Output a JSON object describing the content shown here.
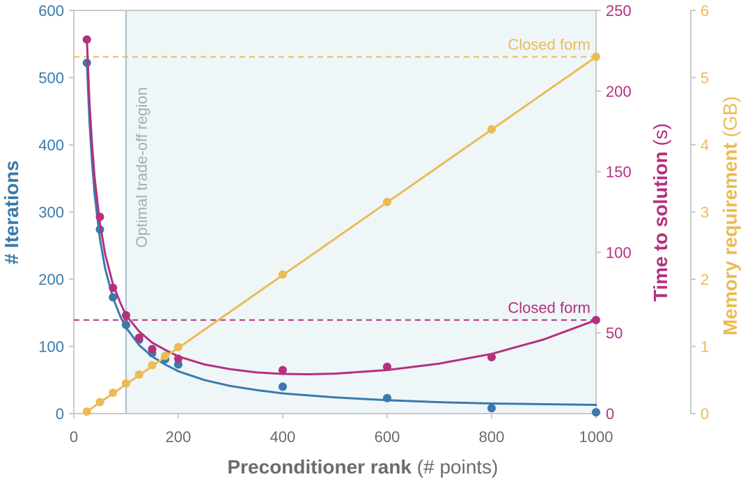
{
  "chart_data": {
    "type": "line",
    "xlabel_bold": "Preconditioner rank",
    "xlabel_rest": "(# points)",
    "xlim": [
      0,
      1000
    ],
    "xticks": [
      0,
      200,
      400,
      600,
      800,
      1000
    ],
    "shaded_region": {
      "x_start": 100,
      "x_end": 1000,
      "label": "Optimal trade-off region",
      "color": "#eef6f8",
      "line_color": "#a9bfcc",
      "label_color": "#a3adb8"
    },
    "axes": {
      "iterations": {
        "label_bold": "# Iterations",
        "label_rest": "",
        "ylim": [
          0,
          600
        ],
        "ticks": [
          0,
          100,
          200,
          300,
          400,
          500,
          600
        ],
        "color": "#3a7aab"
      },
      "time": {
        "label_bold": "Time to solution",
        "label_rest": "(s)",
        "ylim": [
          0,
          250
        ],
        "ticks": [
          0,
          50,
          100,
          150,
          200,
          250
        ],
        "color": "#b5307f"
      },
      "memory": {
        "label_bold": "Memory requirement",
        "label_rest": "(GB)",
        "ylim": [
          0,
          6
        ],
        "ticks": [
          0,
          1,
          2,
          3,
          4,
          5,
          6
        ],
        "color": "#ecbb54"
      }
    },
    "series": [
      {
        "key": "iterations",
        "axis": "iterations",
        "x": [
          25,
          50,
          75,
          100,
          125,
          150,
          175,
          200,
          400,
          600,
          800,
          1000
        ],
        "y": [
          522,
          274,
          173,
          132,
          110,
          90,
          81,
          73,
          40,
          23,
          8,
          2
        ],
        "fit_x": [
          25,
          30,
          35,
          40,
          50,
          60,
          75,
          90,
          100,
          125,
          150,
          175,
          200,
          250,
          300,
          350,
          400,
          500,
          600,
          700,
          800,
          900,
          1000
        ],
        "fit_y": [
          522,
          434,
          372,
          325,
          260,
          216,
          172,
          143,
          128,
          102,
          85,
          73,
          63,
          50,
          41,
          35,
          30,
          24,
          20,
          17,
          15,
          14,
          13
        ]
      },
      {
        "key": "time",
        "axis": "time",
        "x": [
          25,
          50,
          75,
          100,
          125,
          150,
          200,
          400,
          600,
          800,
          1000
        ],
        "y": [
          232,
          122,
          78,
          61,
          47,
          40,
          34,
          27,
          29,
          35,
          58
        ],
        "fit_x": [
          25,
          30,
          35,
          40,
          50,
          60,
          75,
          90,
          100,
          125,
          150,
          175,
          200,
          250,
          300,
          350,
          400,
          450,
          500,
          600,
          700,
          800,
          900,
          1000
        ],
        "fit_y": [
          232,
          193,
          166,
          146,
          118,
          99,
          80,
          68,
          61,
          51,
          44,
          39.5,
          35.5,
          30.5,
          27.5,
          25.5,
          24.6,
          24.4,
          24.8,
          27,
          31,
          37,
          46,
          58
        ]
      },
      {
        "key": "memory",
        "axis": "memory",
        "x": [
          25,
          50,
          75,
          100,
          125,
          150,
          175,
          200,
          400,
          600,
          800,
          1000
        ],
        "y": [
          0.03,
          0.17,
          0.31,
          0.45,
          0.58,
          0.72,
          0.86,
          0.99,
          2.07,
          3.15,
          4.23,
          5.31
        ],
        "fit_x": [
          25,
          1000
        ],
        "fit_y": [
          0.03,
          5.31
        ]
      }
    ],
    "reference_lines": [
      {
        "axis": "time",
        "value": 58,
        "label": "Closed form",
        "color": "#b5307f"
      },
      {
        "axis": "memory",
        "value": 5.31,
        "label": "Closed form",
        "color": "#ecbb54"
      }
    ]
  }
}
